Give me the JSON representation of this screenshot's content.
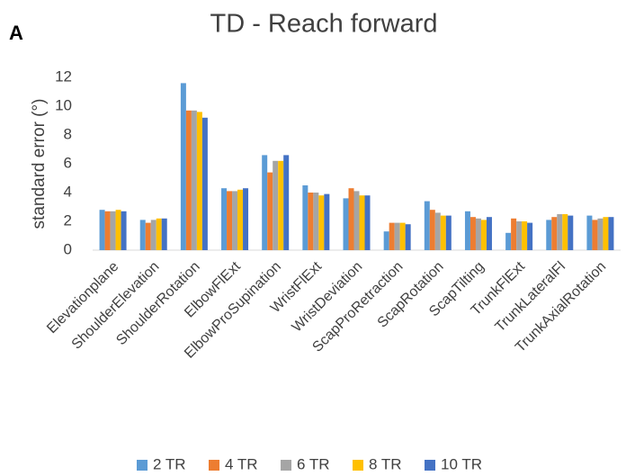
{
  "panel_label": "A",
  "chart_data": {
    "type": "bar",
    "title": "TD - Reach forward",
    "y_label": "standard error (°)",
    "categories": [
      "Elevationplane",
      "ShoulderElevation",
      "ShoulderRotation",
      "ElbowFlExt",
      "ElbowProSupination",
      "WristFlExt",
      "WristDeviation",
      "ScapProRetraction",
      "ScapRotation",
      "ScapTilting",
      "TrunkFlExt",
      "TrunkLateralFl",
      "TrunkAxialRotation"
    ],
    "series": [
      {
        "name": "2 TR",
        "color": "#5b9bd5",
        "values": [
          2.8,
          2.1,
          11.6,
          4.3,
          6.6,
          4.5,
          3.6,
          1.3,
          3.4,
          2.7,
          1.2,
          2.1,
          2.4
        ]
      },
      {
        "name": "4 TR",
        "color": "#ed7d31",
        "values": [
          2.7,
          1.9,
          9.7,
          4.1,
          5.4,
          4.0,
          4.3,
          1.9,
          2.8,
          2.3,
          2.2,
          2.3,
          2.1
        ]
      },
      {
        "name": "6 TR",
        "color": "#a5a5a5",
        "values": [
          2.7,
          2.1,
          9.7,
          4.1,
          6.2,
          4.0,
          4.1,
          1.9,
          2.6,
          2.2,
          2.0,
          2.5,
          2.2
        ]
      },
      {
        "name": "8 TR",
        "color": "#ffc000",
        "values": [
          2.8,
          2.2,
          9.6,
          4.2,
          6.2,
          3.8,
          3.8,
          1.9,
          2.4,
          2.1,
          2.0,
          2.5,
          2.3
        ]
      },
      {
        "name": "10 TR",
        "color": "#4472c4",
        "values": [
          2.7,
          2.2,
          9.2,
          4.3,
          6.6,
          3.9,
          3.8,
          1.8,
          2.4,
          2.3,
          1.9,
          2.4,
          2.3
        ]
      }
    ],
    "ylim": [
      0,
      12
    ],
    "yticks": [
      0,
      2,
      4,
      6,
      8,
      10,
      12
    ],
    "grid": false,
    "legend": "bottom"
  }
}
